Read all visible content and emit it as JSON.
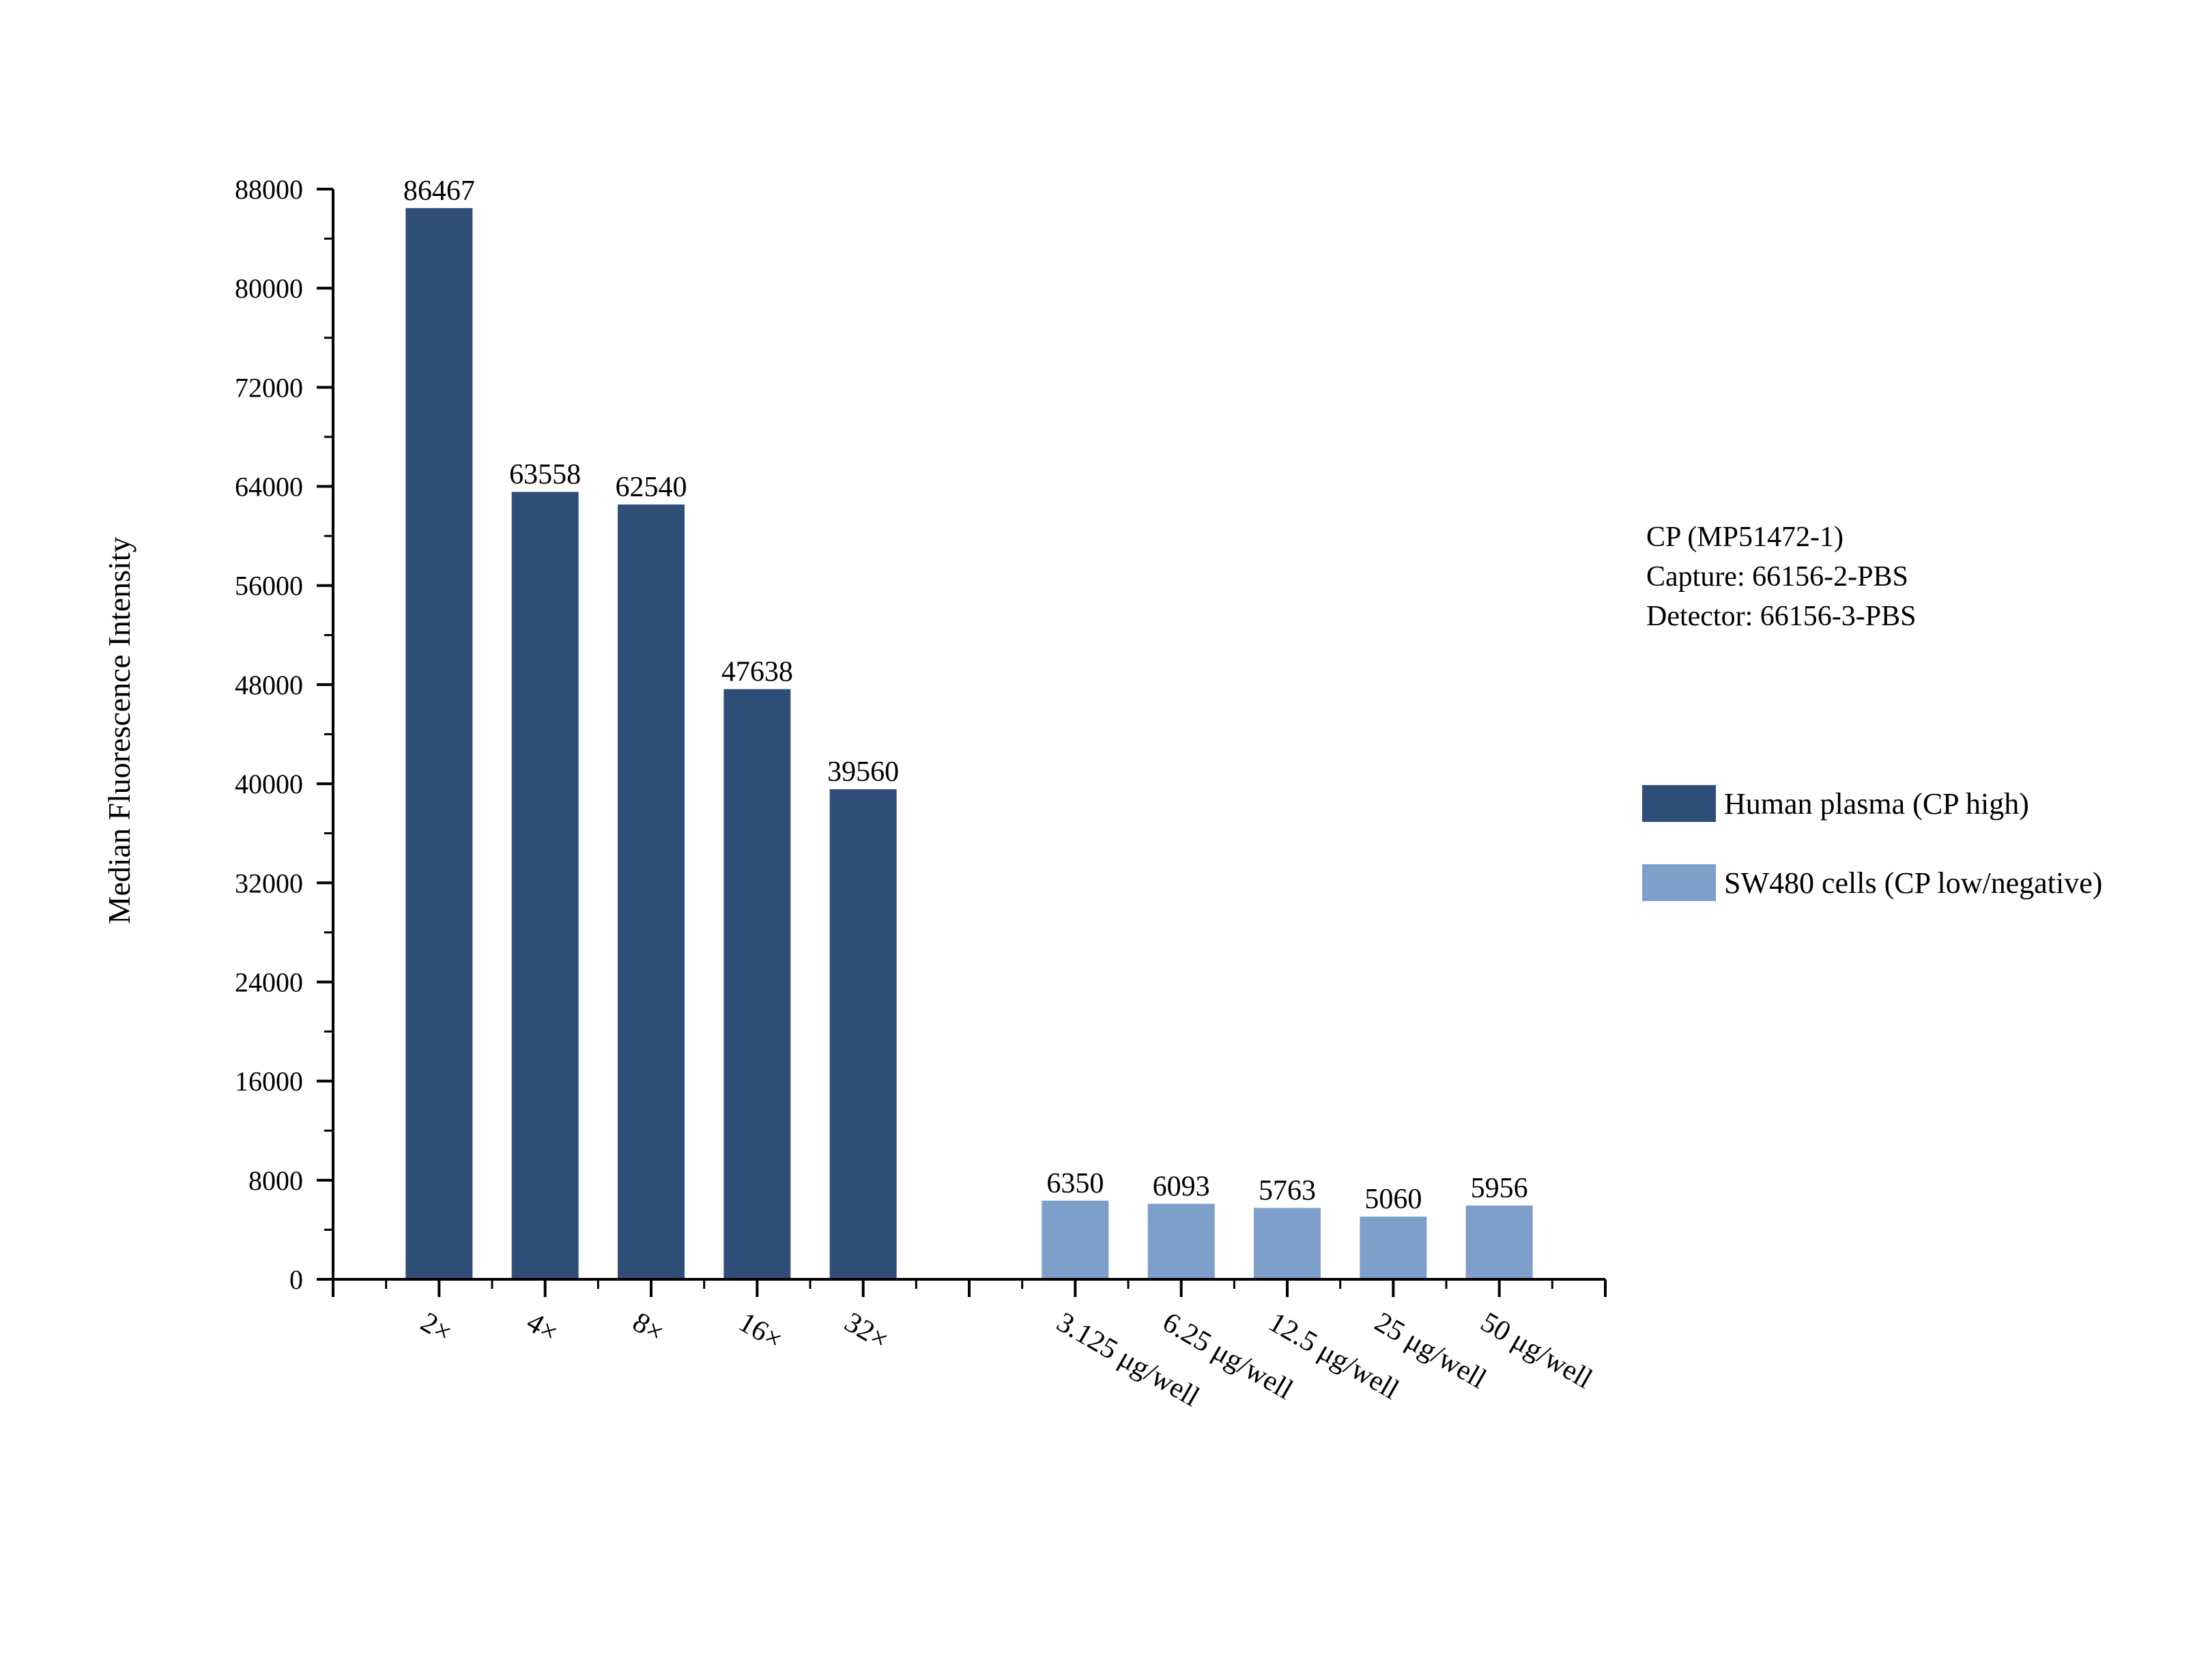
{
  "chart_data": {
    "type": "bar",
    "ylabel": "Median Fluorescence Intensity",
    "xlabel": "",
    "ylim": [
      0,
      88000
    ],
    "yticks": [
      0,
      8000,
      16000,
      24000,
      32000,
      40000,
      48000,
      56000,
      64000,
      72000,
      80000,
      88000
    ],
    "annotations": [
      "CP (MP51472-1)",
      "Capture: 66156-2-PBS",
      "Detector: 66156-3-PBS"
    ],
    "legend_position": "right",
    "series": [
      {
        "name": "Human plasma (CP high)",
        "color": "#2e4e78",
        "categories": [
          "2×",
          "4×",
          "8×",
          "16×",
          "32×"
        ],
        "values": [
          86467,
          63558,
          62540,
          47638,
          39560
        ],
        "slots": [
          1,
          2,
          3,
          4,
          5
        ]
      },
      {
        "name": "SW480 cells (CP low/negative)",
        "color": "#7f9fcb",
        "categories": [
          "3.125 μg/well",
          "6.25 μg/well",
          "12.5 μg/well",
          "25 μg/well",
          "50 μg/well"
        ],
        "values": [
          6350,
          6093,
          5763,
          5060,
          5956
        ],
        "slots": [
          7,
          8,
          9,
          10,
          11
        ]
      }
    ],
    "slot_count": 12
  }
}
